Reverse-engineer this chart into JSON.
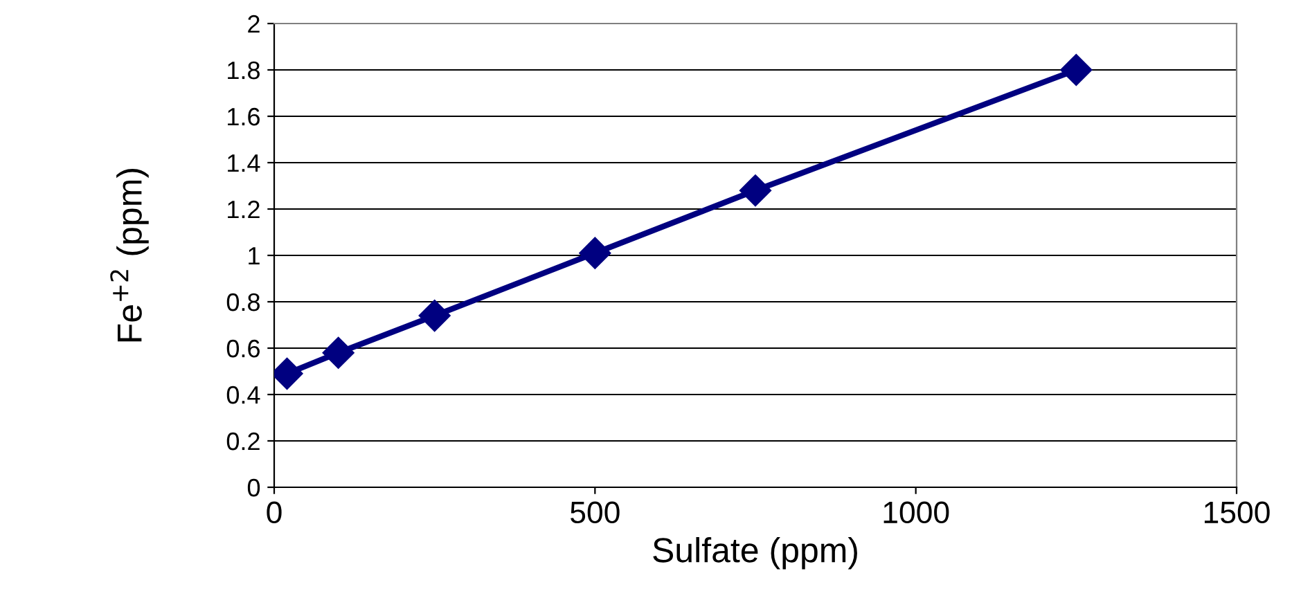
{
  "chart_data": {
    "type": "line",
    "xlabel": "Sulfate (ppm)",
    "ylabel": "Fe$^{+2}$ (ppm)",
    "x": [
      20,
      100,
      250,
      500,
      750,
      1250
    ],
    "series": [
      {
        "color": "#000080",
        "values": [
          0.49,
          0.58,
          0.74,
          1.01,
          1.28,
          1.8
        ]
      }
    ],
    "xlim": [
      0,
      1500
    ],
    "xticks": [
      0,
      500,
      1000,
      1500
    ],
    "ylim": [
      0,
      2
    ],
    "yticks": [
      0,
      0.2,
      0.4,
      0.6,
      0.8,
      1,
      1.2,
      1.4,
      1.6,
      1.8,
      2
    ],
    "grid": "y",
    "marker": "diamond",
    "line_style": "solid",
    "legend": false
  }
}
